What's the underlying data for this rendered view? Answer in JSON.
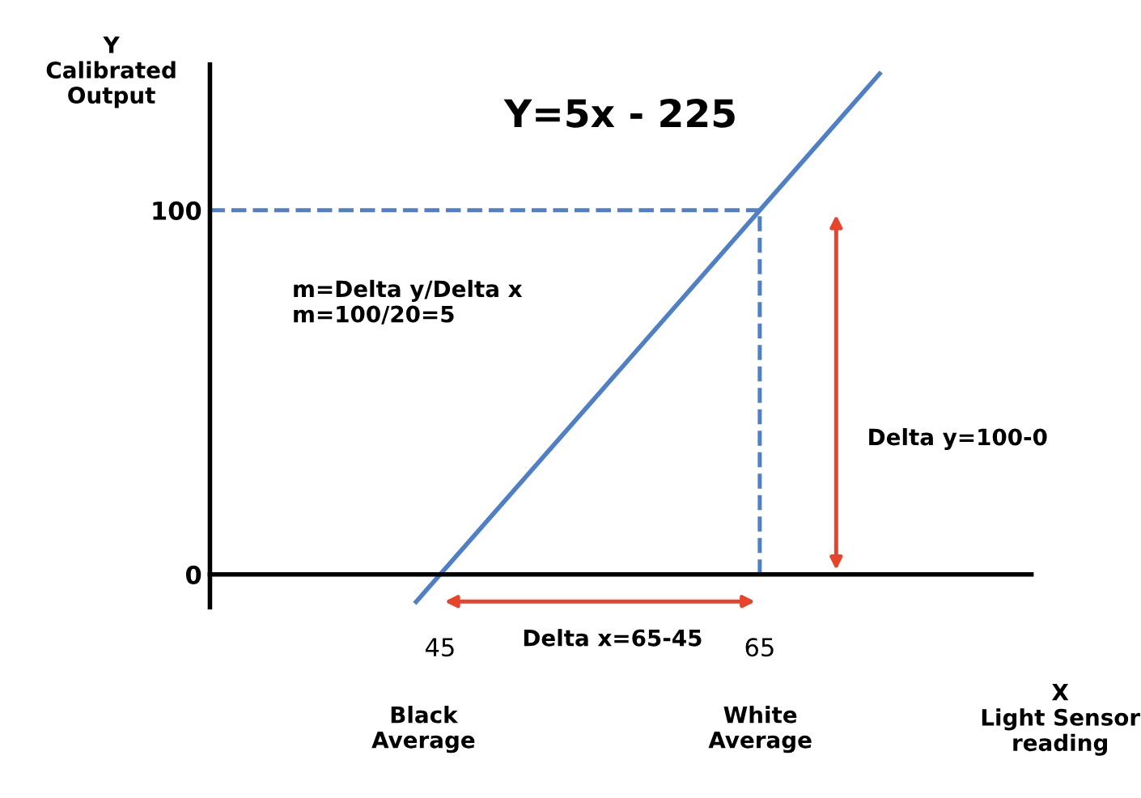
{
  "chart_data": {
    "type": "line",
    "title": "Y=5x - 225",
    "xlabel": "X\nLight Sensor\nreading",
    "ylabel": "Y\nCalibrated\nOutput",
    "series": [
      {
        "color": "#4f7fc4",
        "x": [
          43.5,
          72.5
        ],
        "values": [
          -7.5,
          137.5
        ]
      }
    ],
    "xlim": [
      30.6,
      82
    ],
    "ylim": [
      -9,
      140
    ],
    "xticks": [
      45,
      65
    ],
    "yticks": [
      0,
      100
    ],
    "grid": false,
    "marker": "none",
    "line_style": "solid",
    "ref_lines": [
      {
        "axis": "y",
        "value": 100,
        "color": "#4f7fc4",
        "line_style": "dashed"
      },
      {
        "axis": "x",
        "value": 65,
        "color": "#4f7fc4",
        "line_style": "dashed"
      }
    ],
    "annotations": [
      "m=Delta y/Delta x\nm=100/20=5",
      "Delta y=100-0",
      "Delta x=65-45",
      "Black\nAverage",
      "White\nAverage"
    ]
  }
}
